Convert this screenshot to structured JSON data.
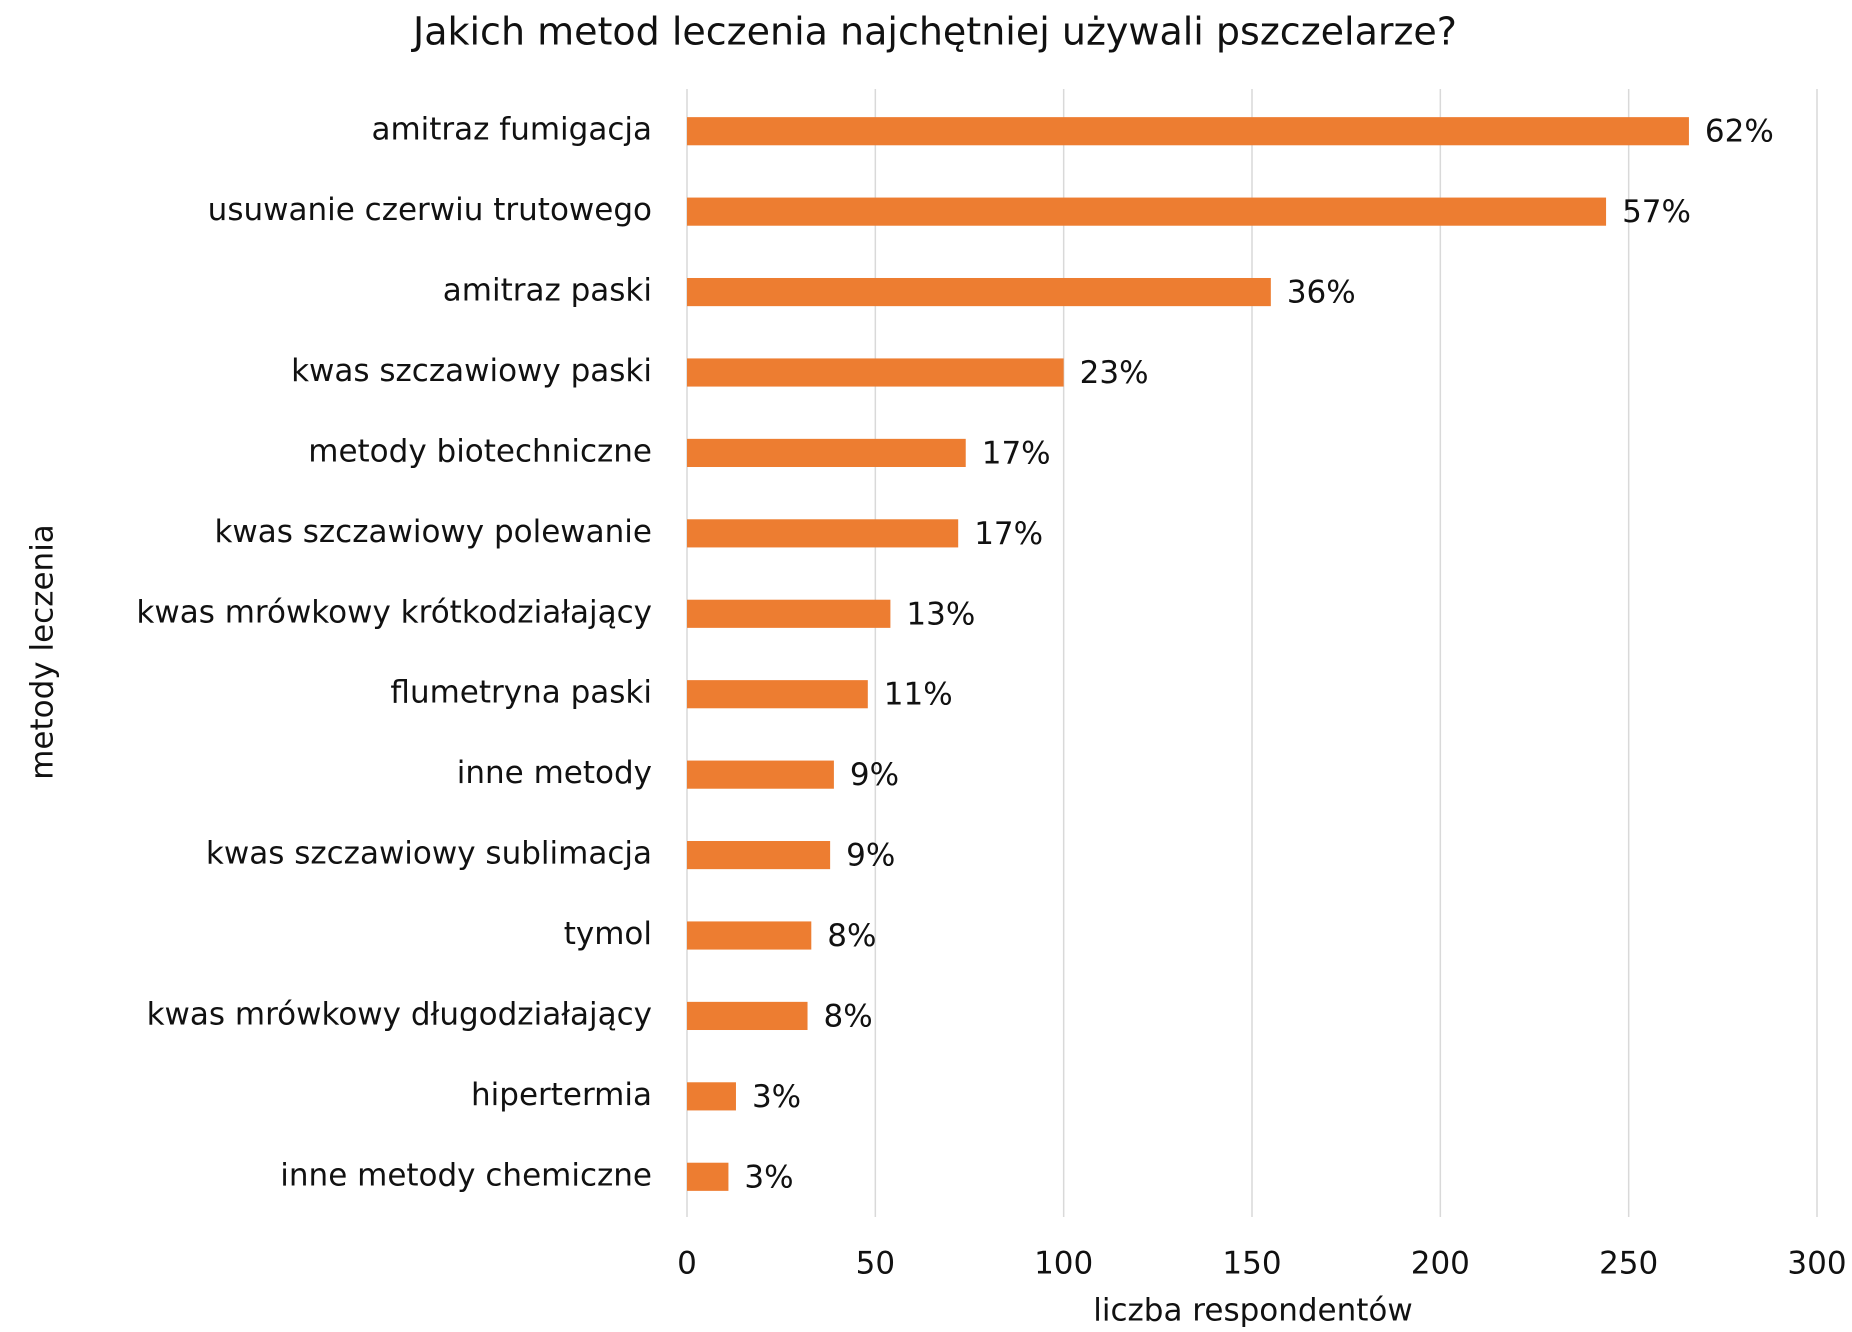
{
  "chart_data": {
    "type": "bar",
    "orientation": "horizontal",
    "title": "Jakich metod leczenia najchętniej używali pszczelarze?",
    "xlabel": "liczba respondentów",
    "ylabel": "metody leczenia",
    "categories": [
      "amitraz fumigacja",
      "usuwanie czerwiu trutowego",
      "amitraz paski",
      "kwas szczawiowy paski",
      "metody biotechniczne",
      "kwas szczawiowy polewanie",
      "kwas mrówkowy krótkodziałający",
      "flumetryna paski",
      "inne metody",
      "kwas szczawiowy sublimacja",
      "tymol",
      "kwas mrówkowy długodziałający",
      "hipertermia",
      "inne metody chemiczne"
    ],
    "values": [
      266,
      244,
      155,
      100,
      74,
      72,
      54,
      48,
      39,
      38,
      33,
      32,
      13,
      11
    ],
    "shares": [
      62,
      57,
      36,
      23,
      17,
      17,
      13,
      11,
      9,
      9,
      8,
      8,
      3,
      3
    ],
    "share_labels": [
      "62%",
      "57%",
      "36%",
      "23%",
      "17%",
      "17%",
      "13%",
      "11%",
      "9%",
      "9%",
      "8%",
      "8%",
      "3%",
      "3%"
    ],
    "color": "#ed7d31",
    "xlim": [
      0,
      300
    ],
    "xticks": [
      0,
      50,
      100,
      150,
      200,
      250,
      300
    ],
    "grid": true
  }
}
